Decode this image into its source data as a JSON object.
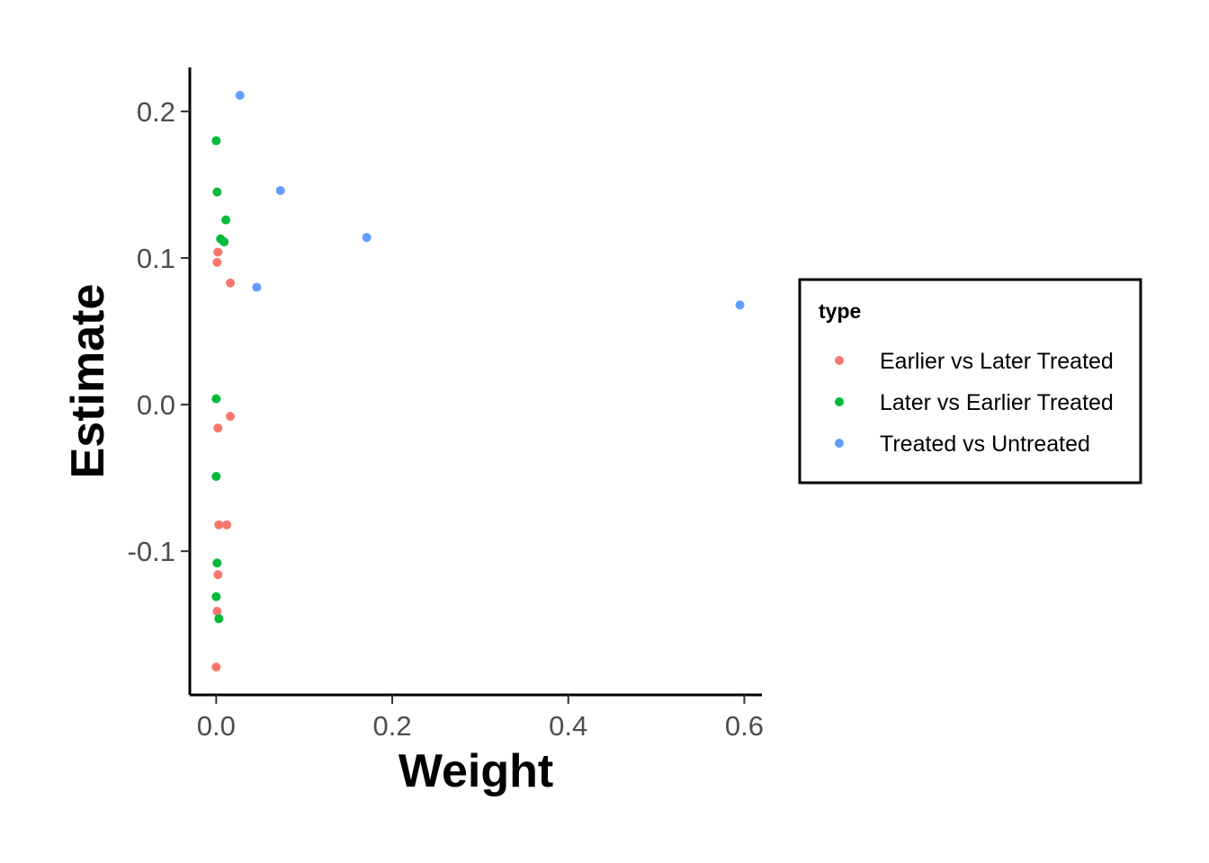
{
  "chart_data": {
    "type": "scatter",
    "title": "",
    "xlabel": "Weight",
    "ylabel": "Estimate",
    "xlim": [
      -0.03,
      0.62
    ],
    "ylim": [
      -0.198,
      0.23
    ],
    "x_ticks": [
      0.0,
      0.2,
      0.4,
      0.6
    ],
    "x_tick_labels": [
      "0.0",
      "0.2",
      "0.4",
      "0.6"
    ],
    "y_ticks": [
      -0.1,
      0.0,
      0.1,
      0.2
    ],
    "y_tick_labels": [
      "-0.1",
      "0.0",
      "0.1",
      "0.2"
    ],
    "grid": false,
    "legend": {
      "title": "type",
      "placement": "right"
    },
    "series": [
      {
        "name": "Earlier vs Later Treated",
        "color": "#F8766D",
        "points": [
          {
            "x": 0.002,
            "y": 0.104
          },
          {
            "x": 0.001,
            "y": 0.097
          },
          {
            "x": 0.016,
            "y": 0.083
          },
          {
            "x": 0.016,
            "y": -0.008
          },
          {
            "x": 0.002,
            "y": -0.016
          },
          {
            "x": 0.003,
            "y": -0.082
          },
          {
            "x": 0.012,
            "y": -0.082
          },
          {
            "x": 0.002,
            "y": -0.116
          },
          {
            "x": 0.001,
            "y": -0.141
          },
          {
            "x": 0.0,
            "y": -0.179
          }
        ]
      },
      {
        "name": "Later vs Earlier Treated",
        "color": "#00BA38",
        "points": [
          {
            "x": 0.0,
            "y": 0.18
          },
          {
            "x": 0.001,
            "y": 0.145
          },
          {
            "x": 0.011,
            "y": 0.126
          },
          {
            "x": 0.005,
            "y": 0.113
          },
          {
            "x": 0.009,
            "y": 0.111
          },
          {
            "x": 0.0,
            "y": 0.004
          },
          {
            "x": 0.0,
            "y": -0.049
          },
          {
            "x": 0.001,
            "y": -0.108
          },
          {
            "x": 0.0,
            "y": -0.131
          },
          {
            "x": 0.003,
            "y": -0.146
          }
        ]
      },
      {
        "name": "Treated vs Untreated",
        "color": "#619CFF",
        "points": [
          {
            "x": 0.027,
            "y": 0.211
          },
          {
            "x": 0.073,
            "y": 0.146
          },
          {
            "x": 0.171,
            "y": 0.114
          },
          {
            "x": 0.046,
            "y": 0.08
          },
          {
            "x": 0.595,
            "y": 0.068
          }
        ]
      }
    ]
  }
}
